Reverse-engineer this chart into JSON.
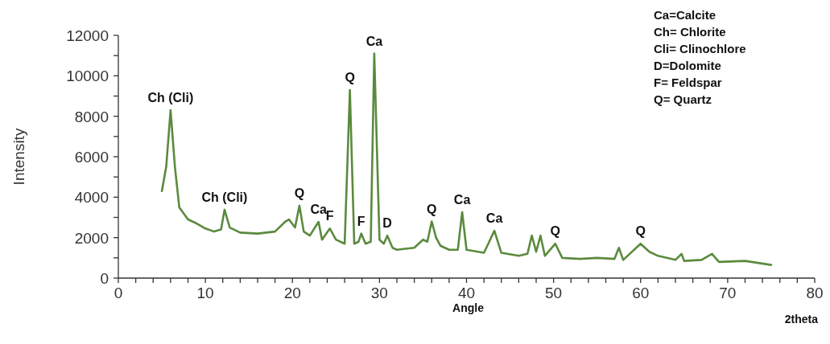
{
  "chart_data": {
    "type": "line",
    "xlabel": "Angle",
    "ylabel": "Intensity",
    "xlim": [
      0,
      80
    ],
    "xticks": [
      0,
      {
        "value": 2,
        "label": null
      },
      {
        "value": 4,
        "label": null
      },
      {
        "value": 6,
        "label": null
      },
      {
        "value": 8,
        "label": null
      },
      10,
      {
        "value": 12,
        "label": null
      },
      {
        "value": 14,
        "label": null
      },
      {
        "value": 16,
        "label": null
      },
      {
        "value": 18,
        "label": null
      },
      20,
      {
        "value": 22,
        "label": null
      },
      {
        "value": 24,
        "label": null
      },
      {
        "value": 26,
        "label": null
      },
      {
        "value": 28,
        "label": null
      },
      30,
      {
        "value": 32,
        "label": null
      },
      {
        "value": 34,
        "label": null
      },
      {
        "value": 36,
        "label": null
      },
      {
        "value": 38,
        "label": null
      },
      40,
      {
        "value": 42,
        "label": null
      },
      {
        "value": 44,
        "label": null
      },
      {
        "value": 46,
        "label": null
      },
      {
        "value": 48,
        "label": null
      },
      50,
      {
        "value": 52,
        "label": null
      },
      {
        "value": 54,
        "label": null
      },
      {
        "value": 56,
        "label": null
      },
      {
        "value": 58,
        "label": null
      },
      60,
      {
        "value": 62,
        "label": null
      },
      {
        "value": 64,
        "label": null
      },
      {
        "value": 66,
        "label": null
      },
      {
        "value": 68,
        "label": null
      },
      70,
      {
        "value": 72,
        "label": null
      },
      {
        "value": 74,
        "label": null
      },
      {
        "value": 76,
        "label": null
      },
      {
        "value": 78,
        "label": null
      },
      80
    ],
    "ylim": [
      0,
      12000
    ],
    "yticks": [
      0,
      {
        "value": 1000,
        "label": null
      },
      2000,
      {
        "value": 3000,
        "label": null
      },
      4000,
      {
        "value": 5000,
        "label": null
      },
      6000,
      {
        "value": 7000,
        "label": null
      },
      8000,
      {
        "value": 9000,
        "label": null
      },
      10000,
      {
        "value": 11000,
        "label": null
      },
      12000
    ],
    "grid": false,
    "marker": "none",
    "line_style": "solid",
    "series": [
      {
        "color": "#5b8a3e",
        "x": [
          5,
          5.5,
          6,
          6.5,
          7,
          8,
          9,
          10,
          11,
          11.8,
          12.2,
          12.8,
          14,
          16,
          18,
          19.2,
          19.6,
          20.3,
          20.8,
          21.3,
          22,
          23,
          23.4,
          24.3,
          25,
          26,
          26.6,
          27.1,
          27.6,
          27.9,
          28.4,
          29,
          29.4,
          30,
          30.5,
          30.9,
          31.5,
          32,
          34,
          35,
          35.5,
          36,
          36.5,
          37,
          38,
          39,
          39.5,
          40,
          42,
          42.5,
          43.2,
          44,
          46,
          47,
          47.5,
          48,
          48.5,
          49,
          50.2,
          51,
          53,
          55,
          57,
          57.5,
          58,
          60,
          61,
          62,
          64,
          64.7,
          65,
          67,
          68.2,
          69,
          72,
          75
        ],
        "values": [
          4300,
          5500,
          8300,
          5500,
          3500,
          2900,
          2700,
          2450,
          2300,
          2400,
          3380,
          2500,
          2250,
          2200,
          2300,
          2800,
          2900,
          2500,
          3580,
          2300,
          2100,
          2780,
          1900,
          2450,
          1900,
          1700,
          9300,
          1700,
          1800,
          2200,
          1700,
          1800,
          11100,
          1900,
          1700,
          2100,
          1500,
          1400,
          1500,
          1900,
          1800,
          2800,
          2000,
          1600,
          1400,
          1400,
          3260,
          1400,
          1250,
          1700,
          2340,
          1250,
          1100,
          1200,
          2100,
          1300,
          2100,
          1100,
          1700,
          1000,
          950,
          1000,
          950,
          1500,
          900,
          1700,
          1300,
          1100,
          900,
          1200,
          850,
          900,
          1200,
          800,
          850,
          650
        ]
      }
    ],
    "annotations": [
      {
        "text": "Ch (Cli)",
        "x": 6,
        "y": 8300
      },
      {
        "text": "Ch (Cli)",
        "x": 12.2,
        "y": 3380
      },
      {
        "text": "Q",
        "x": 20.8,
        "y": 3580
      },
      {
        "text": "Ca",
        "x": 23,
        "y": 2780
      },
      {
        "text": "F",
        "x": 24.3,
        "y": 2450
      },
      {
        "text": "Q",
        "x": 26.6,
        "y": 9300
      },
      {
        "text": "F",
        "x": 27.9,
        "y": 2200
      },
      {
        "text": "Ca",
        "x": 29.4,
        "y": 11100
      },
      {
        "text": "D",
        "x": 30.9,
        "y": 2100
      },
      {
        "text": "Q",
        "x": 36,
        "y": 2800
      },
      {
        "text": "Ca",
        "x": 39.5,
        "y": 3260
      },
      {
        "text": "Ca",
        "x": 43.2,
        "y": 2340
      },
      {
        "text": "Q",
        "x": 50.2,
        "y": 1700
      },
      {
        "text": "Q",
        "x": 60,
        "y": 1700
      },
      "Ca=Calcite",
      "Ch= Chlorite",
      "Cli= Clinochlore",
      "D=Dolomite",
      "F= Feldspar",
      "Q= Quartz",
      "2theta"
    ]
  }
}
